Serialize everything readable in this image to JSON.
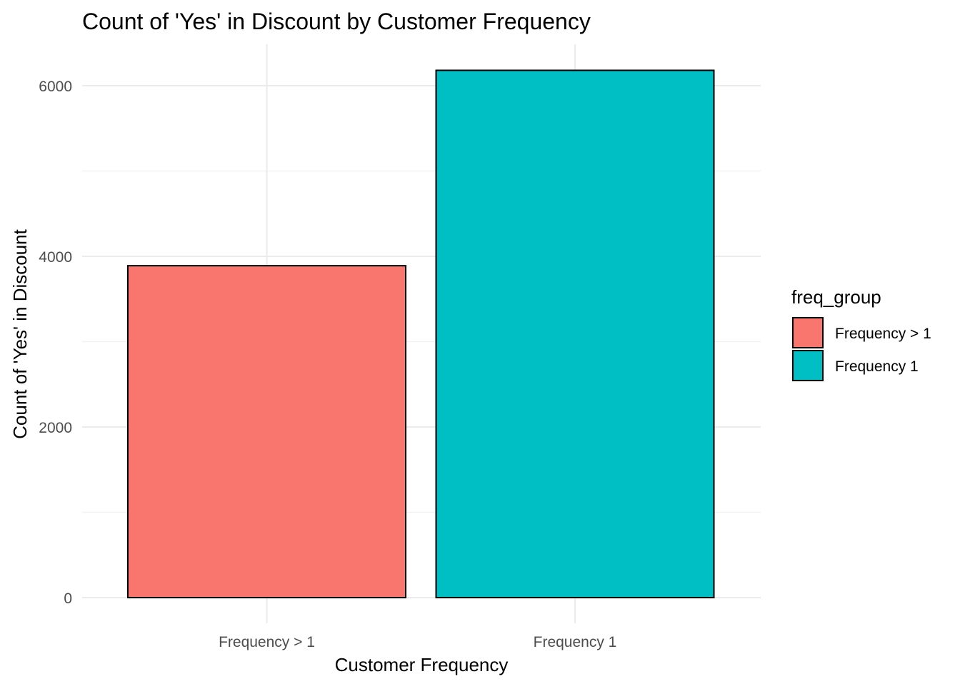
{
  "chart_data": {
    "type": "bar",
    "title": "Count of 'Yes' in Discount by Customer Frequency",
    "xlabel": "Customer Frequency",
    "ylabel": "Count of 'Yes' in Discount",
    "categories": [
      "Frequency > 1",
      "Frequency 1"
    ],
    "values": [
      3890,
      6180
    ],
    "colors": [
      "#F8766D",
      "#00BFC4"
    ],
    "bar_outline": "#000000",
    "ylim": [
      0,
      6500
    ],
    "yticks": [
      0,
      2000,
      4000,
      6000
    ],
    "ytick_labels": [
      "0",
      "2000",
      "4000",
      "6000"
    ],
    "grid": true,
    "legend": {
      "title": "freq_group",
      "position": "right",
      "entries": [
        {
          "label": "Frequency > 1",
          "color": "#F8766D"
        },
        {
          "label": "Frequency 1",
          "color": "#00BFC4"
        }
      ]
    }
  }
}
